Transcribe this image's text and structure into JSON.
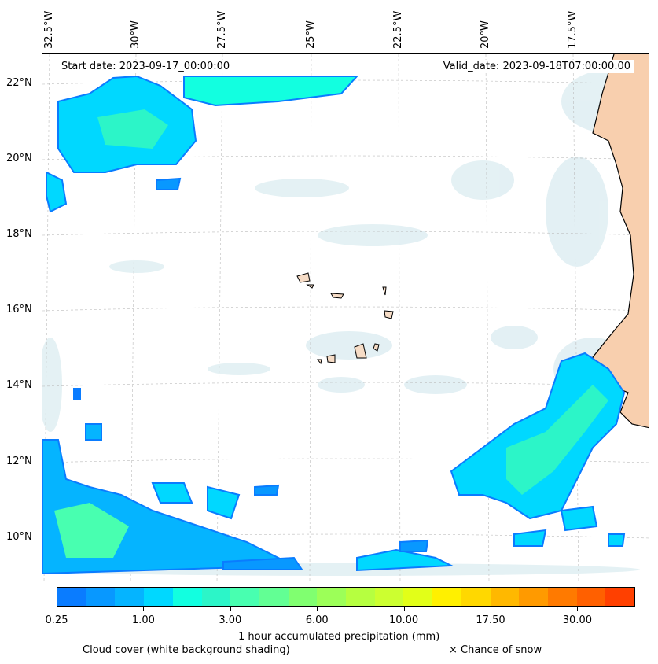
{
  "map": {
    "start_date": "Start date: 2023-09-17_00:00:00",
    "valid_date": "Valid_date: 2023-09-18T07:00:00.00",
    "lon_labels": [
      "32.5°W",
      "30°W",
      "27.5°W",
      "25°W",
      "22.5°W",
      "20°W",
      "17.5°W"
    ],
    "lat_labels": [
      "22°N",
      "20°N",
      "18°N",
      "16°N",
      "14°N",
      "12°N",
      "10°N"
    ]
  },
  "colorbar": {
    "colors": [
      "#0a7cff",
      "#0898ff",
      "#05b4ff",
      "#00d8ff",
      "#12ffe0",
      "#2cf5c8",
      "#48ffb0",
      "#62ff94",
      "#80ff70",
      "#9cff58",
      "#b6ff40",
      "#ccff30",
      "#e2ff18",
      "#fff000",
      "#ffd800",
      "#ffb800",
      "#ff9a00",
      "#ff7a00",
      "#ff6000",
      "#ff4000"
    ],
    "tick_labels": [
      "0.25",
      "1.00",
      "3.00",
      "6.00",
      "10.00",
      "17.50",
      "30.00"
    ],
    "label": "1 hour accumulated precipitation (mm)"
  },
  "legend": {
    "cloud_cover": "Cloud cover (white background shading)",
    "snow": "× Chance of snow"
  }
}
